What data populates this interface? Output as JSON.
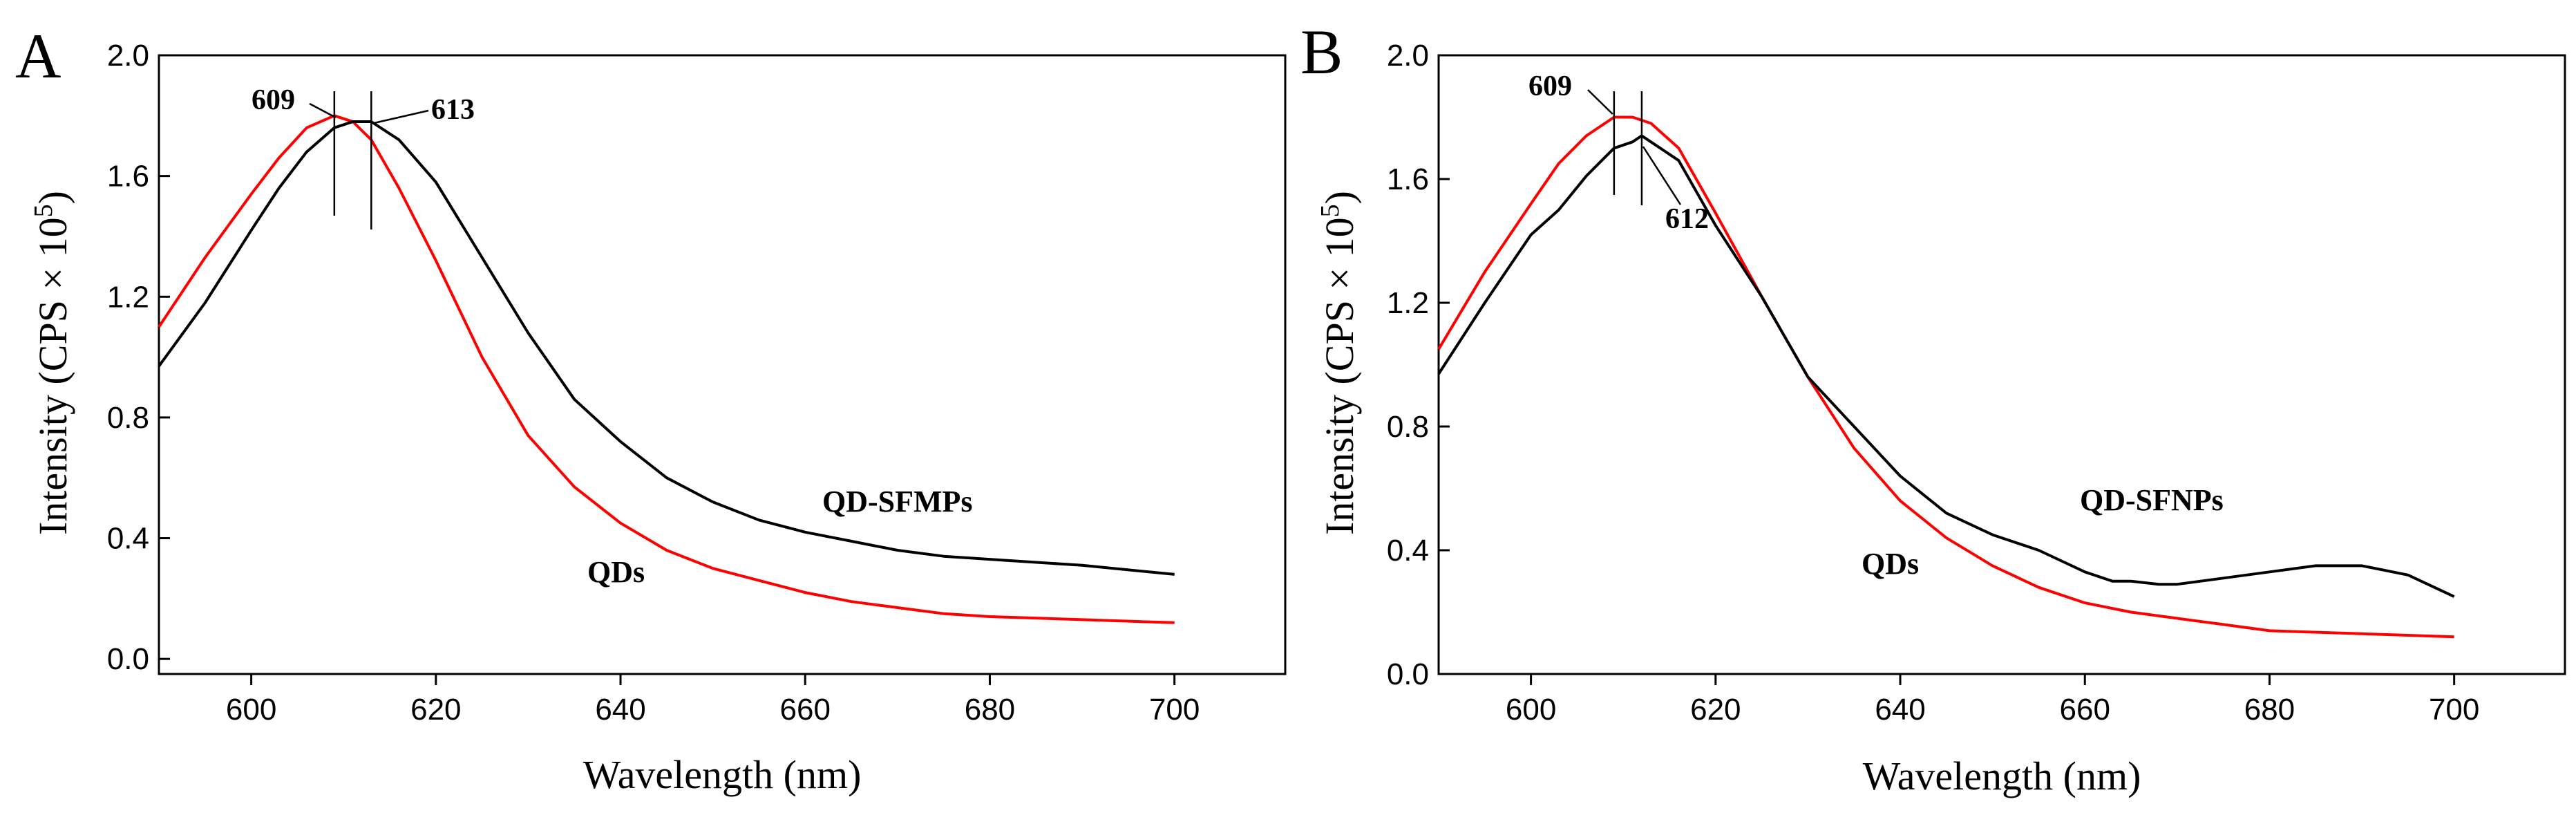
{
  "chart_data": [
    {
      "type": "line",
      "panel_label": "A",
      "xlabel": "Wavelength (nm)",
      "ylabel_main": "Intensity (CPS × 10",
      "ylabel_sup": "5",
      "ylabel_close": ")",
      "xlim": [
        590,
        712
      ],
      "ylim": [
        -0.05,
        2.0
      ],
      "xticks": [
        "600",
        "620",
        "640",
        "660",
        "680",
        "700"
      ],
      "xtick_values": [
        600,
        620,
        640,
        660,
        680,
        700
      ],
      "yticks": [
        "0.0",
        "0.4",
        "0.8",
        "1.2",
        "1.6",
        "2.0"
      ],
      "ytick_values": [
        0.0,
        0.4,
        0.8,
        1.2,
        1.6,
        2.0
      ],
      "series": [
        {
          "name": "QDs",
          "color": "#ff0000",
          "x": [
            590,
            595,
            600,
            603,
            606,
            609,
            611,
            613,
            616,
            620,
            625,
            630,
            635,
            640,
            645,
            650,
            655,
            660,
            665,
            670,
            675,
            680,
            690,
            700
          ],
          "y": [
            1.1,
            1.33,
            1.54,
            1.66,
            1.76,
            1.8,
            1.78,
            1.72,
            1.56,
            1.32,
            1.0,
            0.74,
            0.57,
            0.45,
            0.36,
            0.3,
            0.26,
            0.22,
            0.19,
            0.17,
            0.15,
            0.14,
            0.13,
            0.12
          ]
        },
        {
          "name": "QD-SFMPs",
          "color": "#000000",
          "x": [
            590,
            595,
            600,
            603,
            606,
            609,
            611,
            613,
            616,
            620,
            625,
            630,
            635,
            640,
            645,
            650,
            655,
            660,
            665,
            670,
            675,
            680,
            690,
            700
          ],
          "y": [
            0.97,
            1.18,
            1.42,
            1.56,
            1.68,
            1.76,
            1.78,
            1.78,
            1.72,
            1.58,
            1.33,
            1.08,
            0.86,
            0.72,
            0.6,
            0.52,
            0.46,
            0.42,
            0.39,
            0.36,
            0.34,
            0.33,
            0.31,
            0.28
          ]
        }
      ],
      "annotations": [
        {
          "text": "609",
          "x": 609
        },
        {
          "text": "613",
          "x": 613
        }
      ],
      "series_labels": [
        {
          "text": "QD-SFMPs",
          "x": 655,
          "y": 0.55
        },
        {
          "text": "QDs",
          "x": 640,
          "y": 0.3
        }
      ]
    },
    {
      "type": "line",
      "panel_label": "B",
      "xlabel": "Wavelength (nm)",
      "ylabel_main": "Intensity (CPS × 10",
      "ylabel_sup": "5",
      "ylabel_close": ")",
      "xlim": [
        590,
        712
      ],
      "ylim": [
        0.0,
        2.0
      ],
      "xticks": [
        "600",
        "620",
        "640",
        "660",
        "680",
        "700"
      ],
      "xtick_values": [
        600,
        620,
        640,
        660,
        680,
        700
      ],
      "yticks": [
        "0.0",
        "0.4",
        "0.8",
        "1.2",
        "1.6",
        "2.0"
      ],
      "ytick_values": [
        0.0,
        0.4,
        0.8,
        1.2,
        1.6,
        2.0
      ],
      "series": [
        {
          "name": "QDs",
          "color": "#ff0000",
          "x": [
            590,
            595,
            600,
            603,
            606,
            609,
            611,
            613,
            616,
            620,
            625,
            630,
            635,
            640,
            645,
            650,
            655,
            660,
            665,
            670,
            675,
            680,
            690,
            700
          ],
          "y": [
            1.05,
            1.3,
            1.52,
            1.65,
            1.74,
            1.8,
            1.8,
            1.78,
            1.7,
            1.49,
            1.22,
            0.96,
            0.73,
            0.56,
            0.44,
            0.35,
            0.28,
            0.23,
            0.2,
            0.18,
            0.16,
            0.14,
            0.13,
            0.12
          ]
        },
        {
          "name": "QD-SFNPs",
          "color": "#000000",
          "x": [
            590,
            595,
            600,
            603,
            606,
            609,
            611,
            612,
            613,
            616,
            620,
            625,
            630,
            635,
            640,
            645,
            650,
            655,
            660,
            663,
            665,
            668,
            670,
            675,
            680,
            685,
            690,
            695,
            700
          ],
          "y": [
            0.97,
            1.2,
            1.42,
            1.5,
            1.61,
            1.7,
            1.72,
            1.74,
            1.72,
            1.66,
            1.45,
            1.22,
            0.96,
            0.8,
            0.64,
            0.52,
            0.45,
            0.4,
            0.33,
            0.3,
            0.3,
            0.29,
            0.29,
            0.31,
            0.33,
            0.35,
            0.35,
            0.32,
            0.25
          ]
        }
      ],
      "annotations": [
        {
          "text": "609",
          "x": 609
        },
        {
          "text": "612",
          "x": 612
        }
      ],
      "series_labels": [
        {
          "text": "QD-SFNPs",
          "x": 657,
          "y": 0.53
        },
        {
          "text": "QDs",
          "x": 630,
          "y": 0.33
        }
      ]
    }
  ]
}
